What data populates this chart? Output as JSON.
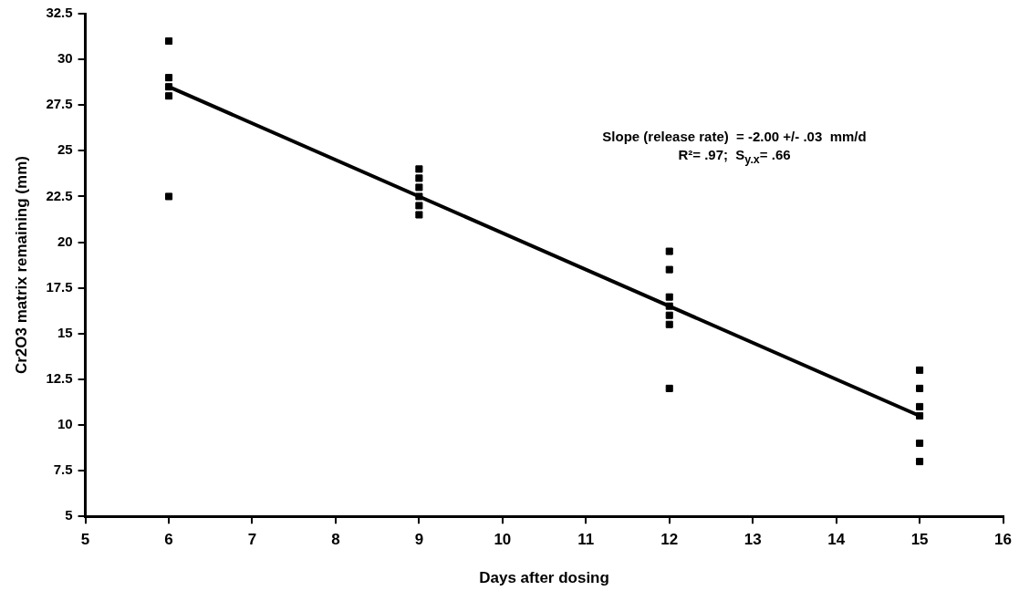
{
  "chart_data": {
    "type": "scatter",
    "xlabel": "Days after dosing",
    "ylabel": "Cr2O3 matrix remaining (mm)",
    "series": [
      {
        "type": "scatter",
        "color": "#000000",
        "x": [
          6,
          6,
          6,
          6,
          6,
          9,
          9,
          9,
          9,
          9,
          9,
          12,
          12,
          12,
          12,
          12,
          12,
          12,
          15,
          15,
          15,
          15,
          15,
          15
        ],
        "values": [
          31,
          29,
          28.5,
          28,
          22.5,
          24,
          23.5,
          23,
          22.5,
          22,
          21.5,
          19.5,
          18.5,
          17,
          16.5,
          16,
          15.5,
          12,
          13,
          12,
          11,
          10.5,
          9,
          8
        ]
      },
      {
        "type": "line",
        "color": "#000000",
        "marker": "none",
        "x": [
          6,
          15
        ],
        "values": [
          28.5,
          10.5
        ]
      }
    ],
    "xlim": [
      5,
      16
    ],
    "xticks": [
      5,
      6,
      7,
      8,
      9,
      10,
      11,
      12,
      13,
      14,
      15,
      16
    ],
    "ylim": [
      5,
      32.5
    ],
    "yticks": [
      5,
      7.5,
      10,
      12.5,
      15,
      17.5,
      20,
      22.5,
      25,
      27.5,
      30,
      32.5
    ],
    "marker": "square",
    "grid": false,
    "legend": false,
    "annotations": [
      "Slope (release rate)  = -2.00 +/- .03  mm/d",
      "R²= .97;  S$_{y.x}$= .66"
    ]
  }
}
